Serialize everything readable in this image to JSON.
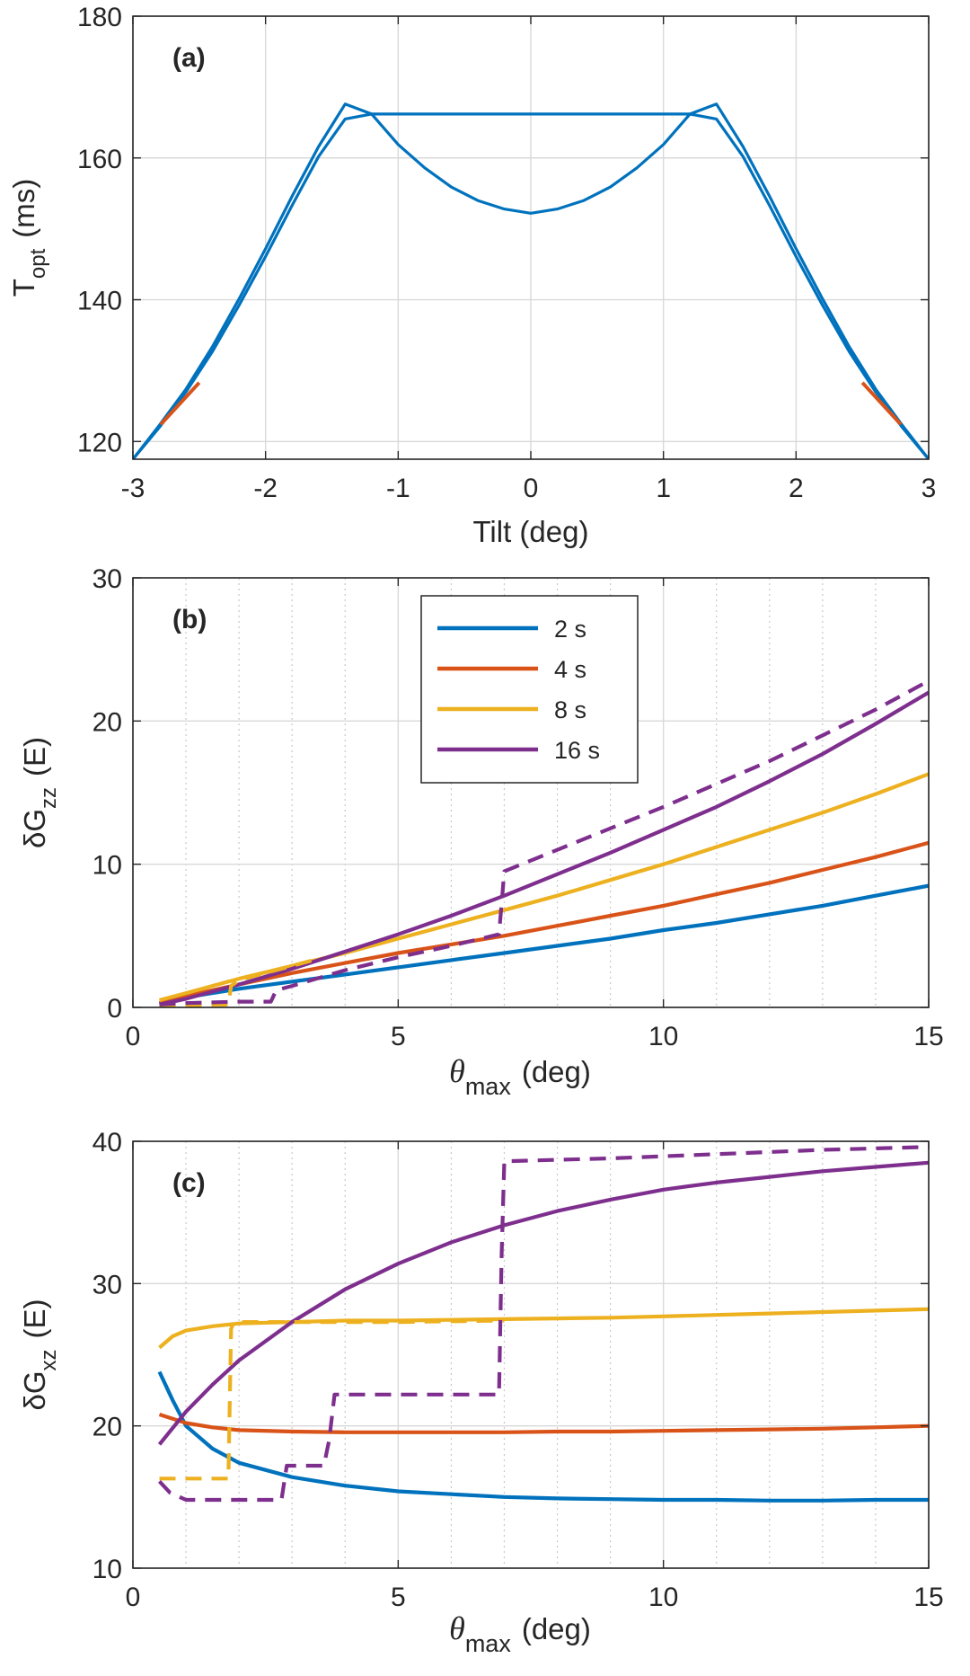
{
  "colors": {
    "blue": "#0072BD",
    "orange": "#D95319",
    "yellow": "#EDB120",
    "purple": "#7E2F8E",
    "grid": "#d9d9d9",
    "axis": "#262626"
  },
  "chart_data": [
    {
      "type": "line",
      "tag": "(a)",
      "xlabel": "Tilt (deg)",
      "ylabel_main": "T",
      "ylabel_sub": "opt",
      "ylabel_unit": "(ms)",
      "xlim": [
        -3,
        3
      ],
      "ylim": [
        117.5,
        180
      ],
      "xticks": [
        -3,
        -2,
        -1,
        0,
        1,
        2,
        3
      ],
      "xtick_labels": [
        "-3",
        "-2",
        "-1",
        "0",
        "1",
        "2",
        "3"
      ],
      "yticks": [
        120,
        140,
        160,
        180
      ],
      "ytick_labels": [
        "120",
        "140",
        "160",
        "180"
      ],
      "grid": true,
      "series": [
        {
          "name": "upper",
          "color": "blue",
          "style": "solid",
          "x": [
            -3,
            -2.8,
            -2.6,
            -2.4,
            -2.2,
            -2.0,
            -1.8,
            -1.6,
            -1.4,
            -1.2,
            -1.0,
            -0.8,
            -0.6,
            -0.4,
            -0.2,
            0.0,
            0.2,
            0.4,
            0.6,
            0.8,
            1.0,
            1.2,
            1.4,
            1.6,
            1.8,
            2.0,
            2.2,
            2.4,
            2.6,
            2.8,
            3.0
          ],
          "y": [
            117.5,
            122.3,
            127.4,
            133.4,
            140.1,
            147.2,
            154.6,
            161.6,
            167.6,
            166.2,
            161.9,
            158.6,
            155.9,
            154.0,
            152.8,
            152.2,
            152.8,
            154.0,
            155.9,
            158.6,
            161.9,
            166.2,
            167.6,
            161.6,
            154.6,
            147.2,
            140.1,
            133.4,
            127.4,
            122.3,
            117.5
          ]
        },
        {
          "name": "lower",
          "color": "blue",
          "style": "solid",
          "x": [
            -3,
            -2.8,
            -2.6,
            -2.4,
            -2.2,
            -2.0,
            -1.8,
            -1.6,
            -1.4,
            -1.2,
            1.2,
            1.4,
            1.6,
            1.8,
            2.0,
            2.2,
            2.4,
            2.6,
            2.8,
            3.0
          ],
          "y": [
            117.5,
            122.0,
            127.0,
            132.7,
            139.2,
            146.1,
            153.3,
            160.2,
            165.5,
            166.2,
            166.2,
            165.5,
            160.2,
            153.3,
            146.1,
            139.2,
            132.7,
            127.0,
            122.0,
            117.5
          ]
        },
        {
          "name": "highlight-left",
          "color": "orange",
          "style": "solid",
          "x": [
            -2.79,
            -2.5
          ],
          "y": [
            122.4,
            128.3
          ]
        },
        {
          "name": "highlight-right",
          "color": "orange",
          "style": "solid",
          "x": [
            2.5,
            2.79
          ],
          "y": [
            128.3,
            122.4
          ]
        }
      ]
    },
    {
      "type": "line",
      "tag": "(b)",
      "xlabel_symbol": "θ",
      "xlabel_sub": "max",
      "xlabel_unit": "(deg)",
      "ylabel_main": "δG",
      "ylabel_sub": "zz",
      "ylabel_unit": "(E)",
      "xlim": [
        0,
        15
      ],
      "ylim": [
        0,
        30
      ],
      "xticks": [
        0,
        5,
        10,
        15
      ],
      "xtick_labels": [
        "0",
        "5",
        "10",
        "15"
      ],
      "yticks": [
        0,
        10,
        20,
        30
      ],
      "ytick_labels": [
        "0",
        "10",
        "20",
        "30"
      ],
      "minor_xgrid": [
        1,
        2,
        3,
        4,
        6,
        7,
        8,
        9,
        11,
        12,
        13,
        14
      ],
      "grid": true,
      "legend": {
        "position": "top-center",
        "entries": [
          {
            "label": "2 s",
            "color": "blue"
          },
          {
            "label": "4 s",
            "color": "orange"
          },
          {
            "label": "8 s",
            "color": "yellow"
          },
          {
            "label": "16 s",
            "color": "purple"
          }
        ]
      },
      "series": [
        {
          "name": "2 s",
          "color": "blue",
          "style": "solid",
          "x": [
            0.5,
            1,
            2,
            3,
            4,
            5,
            6,
            7,
            8,
            9,
            10,
            11,
            12,
            13,
            14,
            15
          ],
          "y": [
            0.3,
            0.7,
            1.3,
            1.8,
            2.3,
            2.8,
            3.3,
            3.8,
            4.3,
            4.8,
            5.4,
            5.9,
            6.5,
            7.1,
            7.8,
            8.5
          ]
        },
        {
          "name": "4 s",
          "color": "orange",
          "style": "solid",
          "x": [
            0.5,
            1,
            2,
            3,
            4,
            5,
            6,
            7,
            8,
            9,
            10,
            11,
            12,
            13,
            14,
            15
          ],
          "y": [
            0.3,
            0.8,
            1.6,
            2.4,
            3.1,
            3.8,
            4.4,
            5.0,
            5.7,
            6.4,
            7.1,
            7.9,
            8.7,
            9.6,
            10.5,
            11.5
          ]
        },
        {
          "name": "8 s",
          "color": "yellow",
          "style": "solid",
          "x": [
            0.5,
            1,
            2,
            3,
            4,
            5,
            6,
            7,
            8,
            9,
            10,
            11,
            12,
            13,
            14,
            15
          ],
          "y": [
            0.5,
            1.0,
            2.0,
            2.9,
            3.8,
            4.8,
            5.8,
            6.8,
            7.8,
            8.9,
            10.0,
            11.2,
            12.4,
            13.6,
            14.9,
            16.3
          ]
        },
        {
          "name": "16 s",
          "color": "purple",
          "style": "solid",
          "x": [
            0.5,
            1,
            2,
            3,
            4,
            5,
            6,
            7,
            8,
            9,
            10,
            11,
            12,
            13,
            14,
            15
          ],
          "y": [
            0.2,
            0.6,
            1.6,
            2.7,
            3.9,
            5.1,
            6.4,
            7.8,
            9.3,
            10.8,
            12.4,
            14.0,
            15.8,
            17.7,
            19.8,
            22.0
          ]
        },
        {
          "name": "8 s dashed",
          "color": "yellow",
          "style": "dashed",
          "x": [
            0.5,
            1.8,
            1.85,
            2.0,
            3.0,
            3.4
          ],
          "y": [
            0.1,
            0.2,
            1.5,
            1.9,
            2.9,
            3.3
          ]
        },
        {
          "name": "16 s dashed",
          "color": "purple",
          "style": "dashed",
          "x": [
            0.5,
            1.0,
            2.0,
            2.6,
            2.7,
            3.0,
            4.0,
            5.0,
            6.0,
            6.9,
            7.0,
            8.0,
            9.0,
            10.0,
            11.0,
            12.0,
            13.0,
            14.0,
            15.0
          ],
          "y": [
            0.2,
            0.3,
            0.4,
            0.4,
            1.2,
            1.5,
            2.6,
            3.5,
            4.3,
            5.1,
            9.5,
            11.0,
            12.5,
            14.0,
            15.6,
            17.2,
            19.0,
            20.8,
            22.8
          ]
        }
      ]
    },
    {
      "type": "line",
      "tag": "(c)",
      "xlabel_symbol": "θ",
      "xlabel_sub": "max",
      "xlabel_unit": "(deg)",
      "ylabel_main": "δG",
      "ylabel_sub": "xz",
      "ylabel_unit": "(E)",
      "xlim": [
        0,
        15
      ],
      "ylim": [
        10,
        40
      ],
      "xticks": [
        0,
        5,
        10,
        15
      ],
      "xtick_labels": [
        "0",
        "5",
        "10",
        "15"
      ],
      "yticks": [
        10,
        20,
        30,
        40
      ],
      "ytick_labels": [
        "10",
        "20",
        "30",
        "40"
      ],
      "minor_xgrid": [
        1,
        2,
        3,
        4,
        6,
        7,
        8,
        9,
        11,
        12,
        13,
        14
      ],
      "grid": true,
      "series": [
        {
          "name": "2 s",
          "color": "blue",
          "style": "solid",
          "x": [
            0.5,
            0.75,
            1,
            1.5,
            2,
            3,
            4,
            5,
            6,
            7,
            8,
            9,
            10,
            11,
            12,
            13,
            14,
            15
          ],
          "y": [
            23.8,
            21.8,
            20.0,
            18.4,
            17.4,
            16.4,
            15.8,
            15.4,
            15.2,
            15.0,
            14.9,
            14.85,
            14.8,
            14.8,
            14.75,
            14.75,
            14.8,
            14.8
          ]
        },
        {
          "name": "4 s",
          "color": "orange",
          "style": "solid",
          "x": [
            0.5,
            1,
            1.5,
            2,
            3,
            4,
            5,
            6,
            7,
            8,
            9,
            10,
            11,
            12,
            13,
            14,
            15
          ],
          "y": [
            20.8,
            20.2,
            19.9,
            19.7,
            19.6,
            19.55,
            19.55,
            19.55,
            19.55,
            19.6,
            19.6,
            19.65,
            19.7,
            19.75,
            19.8,
            19.9,
            20.0
          ]
        },
        {
          "name": "8 s",
          "color": "yellow",
          "style": "solid",
          "x": [
            0.5,
            0.75,
            1,
            1.5,
            2,
            3,
            4,
            5,
            6,
            7,
            8,
            9,
            10,
            11,
            12,
            13,
            14,
            15
          ],
          "y": [
            25.5,
            26.3,
            26.7,
            27.0,
            27.2,
            27.3,
            27.4,
            27.4,
            27.45,
            27.5,
            27.55,
            27.6,
            27.7,
            27.8,
            27.9,
            28.0,
            28.1,
            28.2
          ]
        },
        {
          "name": "16 s",
          "color": "purple",
          "style": "solid",
          "x": [
            0.5,
            1,
            1.5,
            2,
            3,
            4,
            5,
            6,
            7,
            8,
            9,
            10,
            11,
            12,
            13,
            14,
            15
          ],
          "y": [
            18.7,
            21.0,
            22.9,
            24.6,
            27.3,
            29.6,
            31.4,
            32.9,
            34.1,
            35.1,
            35.9,
            36.6,
            37.1,
            37.5,
            37.9,
            38.2,
            38.5
          ]
        },
        {
          "name": "8 s dashed",
          "color": "yellow",
          "style": "dashed",
          "x": [
            0.5,
            0.6,
            1.0,
            1.8,
            1.85,
            1.9,
            3.0,
            5.0,
            7.0
          ],
          "y": [
            16.3,
            16.3,
            16.3,
            16.3,
            26.8,
            27.3,
            27.3,
            27.3,
            27.4
          ]
        },
        {
          "name": "16 s dashed",
          "color": "purple",
          "style": "dashed",
          "x": [
            0.5,
            0.7,
            1.0,
            2.0,
            2.8,
            2.9,
            3.6,
            3.7,
            3.8,
            5.0,
            6.9,
            6.95,
            7.0,
            9.0,
            11.0,
            13.0,
            15.0
          ],
          "y": [
            16.1,
            15.3,
            14.8,
            14.8,
            14.8,
            17.2,
            17.2,
            19.0,
            22.2,
            22.2,
            22.2,
            32.0,
            38.6,
            38.8,
            39.1,
            39.4,
            39.6
          ]
        }
      ]
    }
  ]
}
